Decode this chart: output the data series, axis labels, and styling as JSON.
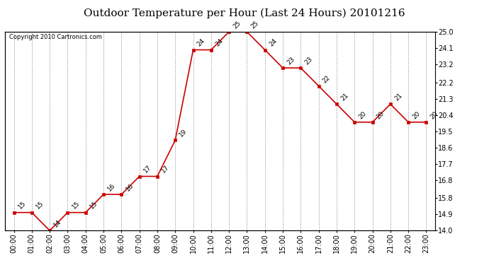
{
  "title": "Outdoor Temperature per Hour (Last 24 Hours) 20101216",
  "copyright": "Copyright 2010 Cartronics.com",
  "hours": [
    "00:00",
    "01:00",
    "02:00",
    "03:00",
    "04:00",
    "05:00",
    "06:00",
    "07:00",
    "08:00",
    "09:00",
    "10:00",
    "11:00",
    "12:00",
    "13:00",
    "14:00",
    "15:00",
    "16:00",
    "17:00",
    "18:00",
    "19:00",
    "20:00",
    "21:00",
    "22:00",
    "23:00"
  ],
  "values": [
    15,
    15,
    14,
    15,
    15,
    16,
    16,
    17,
    17,
    19,
    24,
    24,
    25,
    25,
    24,
    23,
    23,
    22,
    21,
    20,
    20,
    21,
    20,
    20
  ],
  "ylim": [
    14.0,
    25.0
  ],
  "yticks_right": [
    25.0,
    24.1,
    23.2,
    22.2,
    21.3,
    20.4,
    19.5,
    18.6,
    17.7,
    16.8,
    15.8,
    14.9,
    14.0
  ],
  "line_color": "#cc0000",
  "marker_color": "#cc0000",
  "bg_color": "#ffffff",
  "grid_color": "#bbbbbb",
  "title_fontsize": 11,
  "label_fontsize": 7,
  "annotation_fontsize": 6.5,
  "copyright_fontsize": 6
}
